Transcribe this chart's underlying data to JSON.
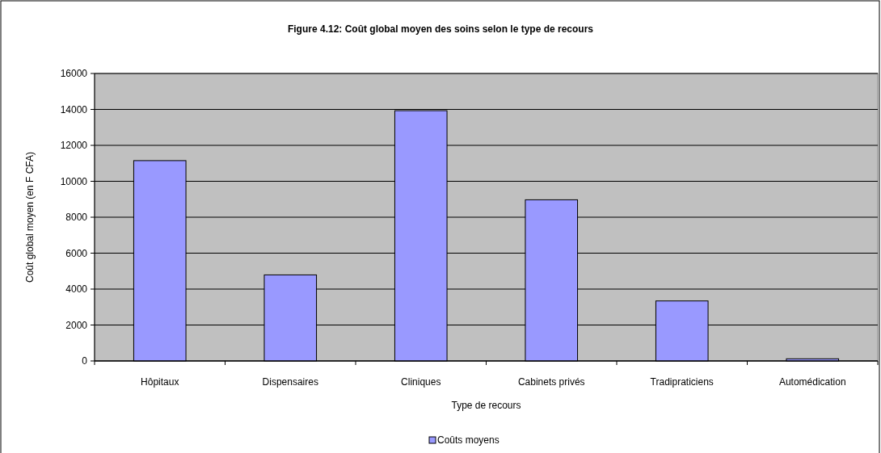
{
  "chart_data": {
    "type": "bar",
    "title": "Figure 4.12: Coût global moyen des soins selon le type de recours",
    "xlabel": "Type de recours",
    "ylabel": "Coût global moyen (en F CFA)",
    "categories": [
      "Hôpitaux",
      "Dispensaires",
      "Cliniques",
      "Cabinets privés",
      "Tradipraticiens",
      "Automédication"
    ],
    "series": [
      {
        "name": "Coûts moyens",
        "color": "#9999ff",
        "values": [
          11150,
          4790,
          13930,
          8970,
          3340,
          120
        ]
      }
    ],
    "ylim": [
      0,
      16000
    ],
    "yticks": [
      0,
      2000,
      4000,
      6000,
      8000,
      10000,
      12000,
      14000,
      16000
    ],
    "grid": "y",
    "legend": "bottom"
  }
}
